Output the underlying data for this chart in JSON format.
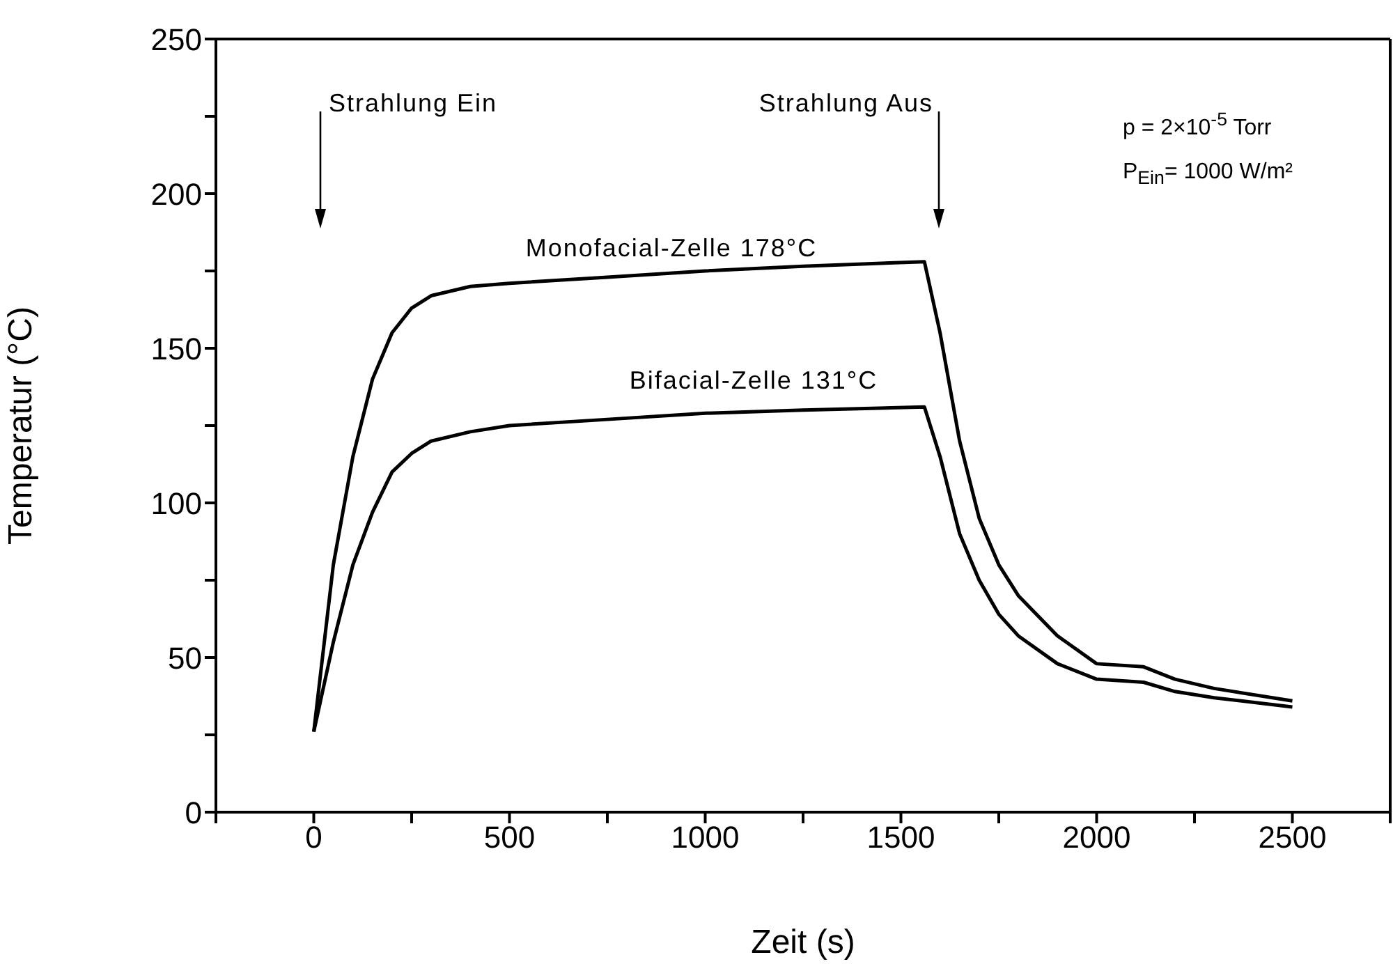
{
  "chart_data": {
    "type": "line",
    "xlabel": "Zeit (s)",
    "ylabel": "Temperatur (°C)",
    "xlim": [
      -250,
      2750
    ],
    "ylim": [
      0,
      250
    ],
    "xticks": [
      {
        "value": -250,
        "label": null
      },
      0,
      {
        "value": 250,
        "label": null
      },
      500,
      {
        "value": 750,
        "label": null
      },
      1000,
      {
        "value": 1250,
        "label": null
      },
      1500,
      {
        "value": 1750,
        "label": null
      },
      2000,
      {
        "value": 2250,
        "label": null
      },
      2500,
      {
        "value": 2750,
        "label": null
      }
    ],
    "yticks": [
      0,
      {
        "value": 25,
        "label": null
      },
      50,
      {
        "value": 75,
        "label": null
      },
      100,
      {
        "value": 125,
        "label": null
      },
      150,
      {
        "value": 175,
        "label": null
      },
      200,
      {
        "value": 225,
        "label": null
      },
      250
    ],
    "grid": false,
    "legend": false,
    "marker": "none",
    "line_style": "solid",
    "series": [
      {
        "color": "#000000",
        "x": [
          0,
          50,
          100,
          150,
          200,
          250,
          300,
          400,
          500,
          750,
          1000,
          1250,
          1560,
          1600,
          1650,
          1700,
          1750,
          1800,
          1900,
          2000,
          2120,
          2200,
          2300,
          2500
        ],
        "values": [
          26,
          80,
          115,
          140,
          155,
          163,
          167,
          170,
          171,
          173,
          175,
          176.5,
          178,
          155,
          120,
          95,
          80,
          70,
          57,
          48,
          47,
          43,
          40,
          36
        ]
      },
      {
        "color": "#000000",
        "x": [
          0,
          50,
          100,
          150,
          200,
          250,
          300,
          400,
          500,
          750,
          1000,
          1250,
          1560,
          1600,
          1650,
          1700,
          1750,
          1800,
          1900,
          2000,
          2120,
          2200,
          2300,
          2500
        ],
        "values": [
          26,
          55,
          80,
          97,
          110,
          116,
          120,
          123,
          125,
          127,
          129,
          130,
          131,
          115,
          90,
          75,
          64,
          57,
          48,
          43,
          42,
          39,
          37,
          34
        ]
      }
    ],
    "annotations": [
      "Strahlung Ein",
      "Strahlung Aus",
      "Monofacial-Zelle 178°C",
      "Bifacial-Zelle 131°C",
      "p = 2×10$^{-5}$ Torr",
      "P$_{Ein}$= 1000 W/m²"
    ]
  }
}
